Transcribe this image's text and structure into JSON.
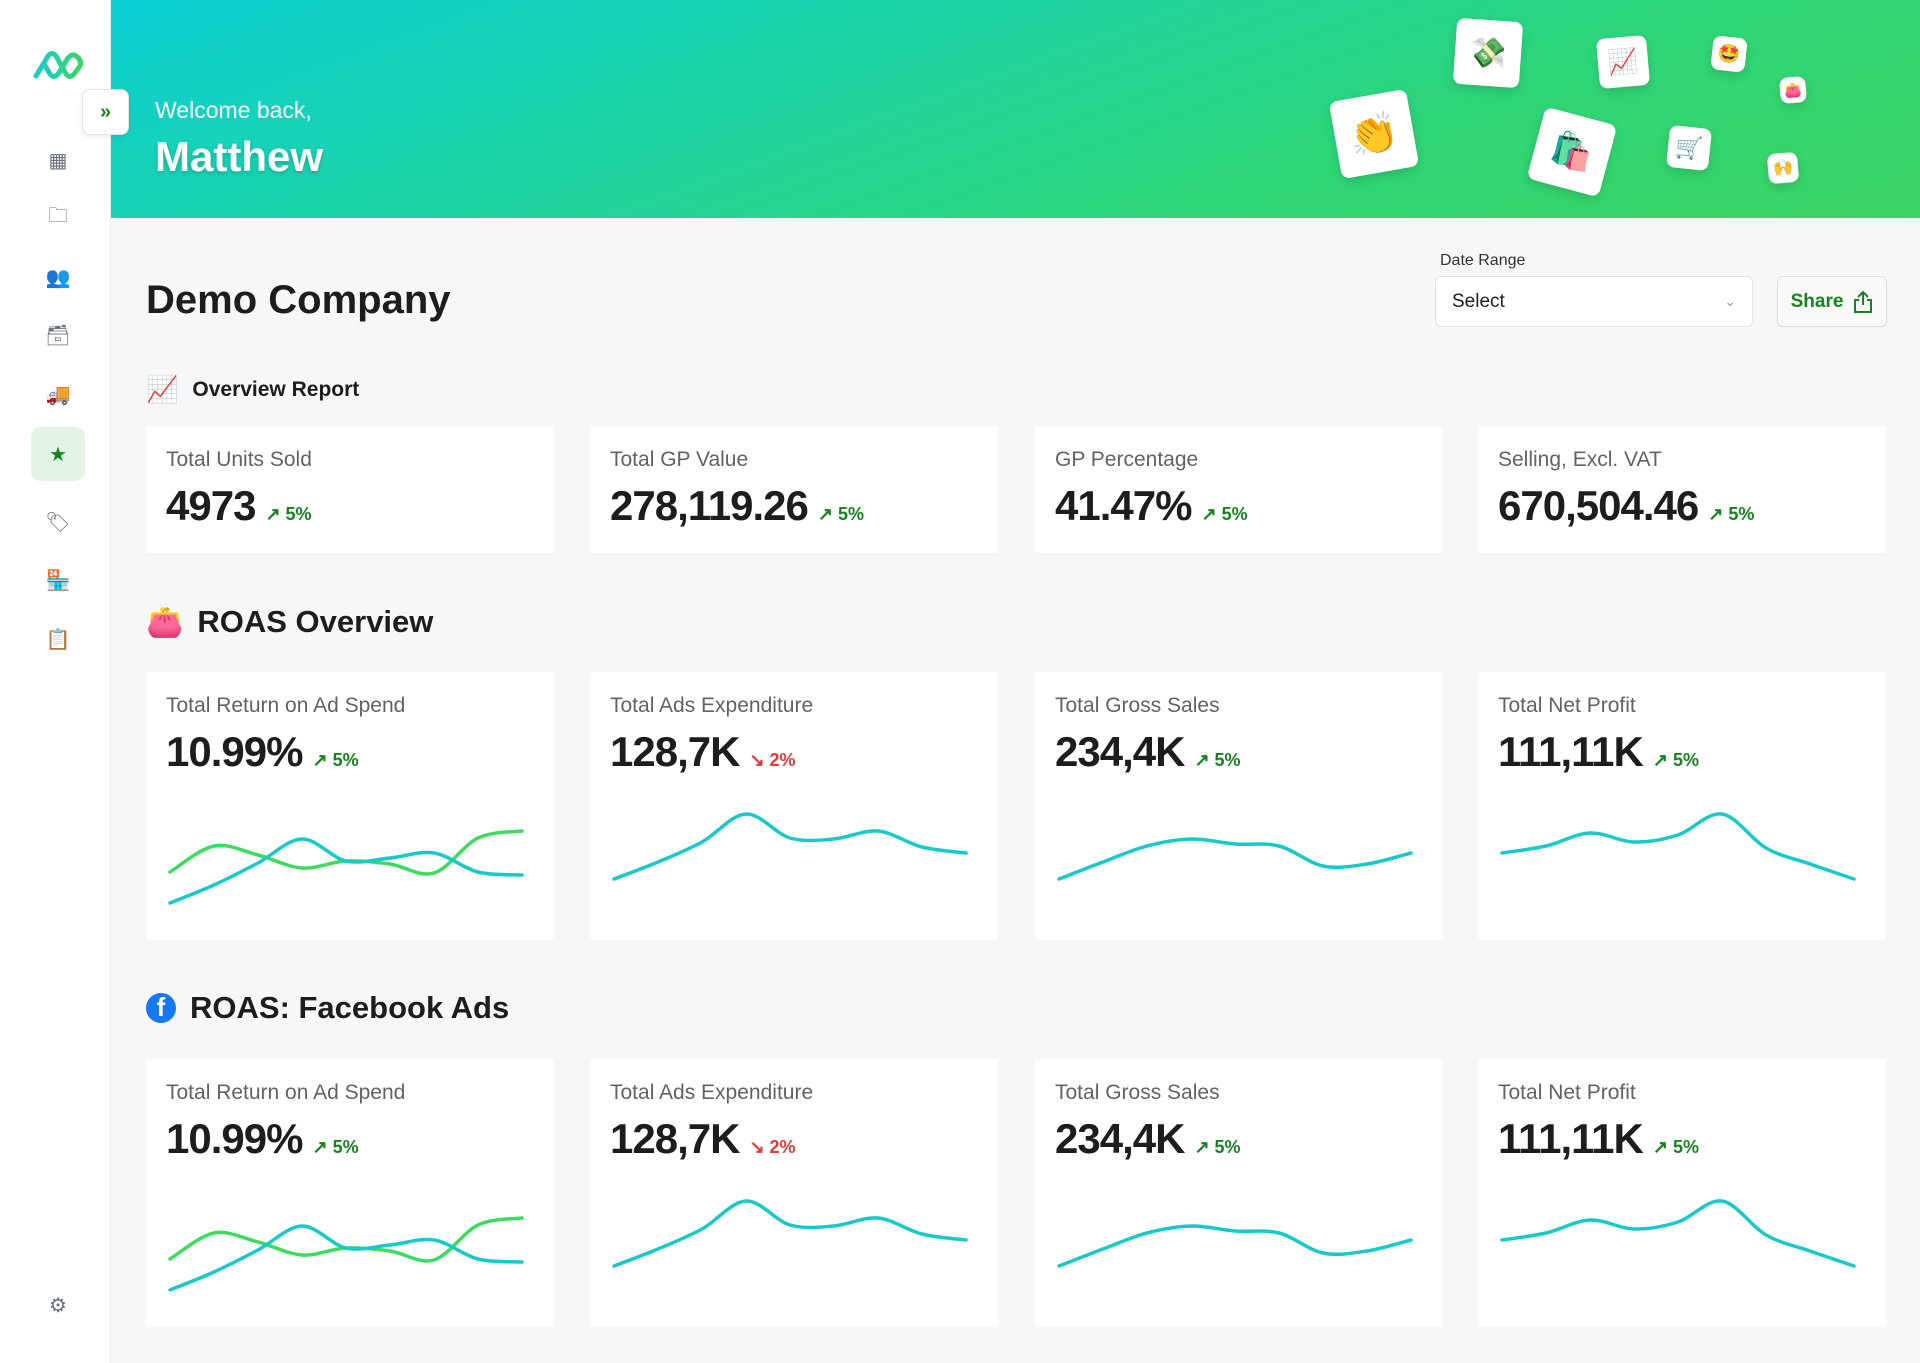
{
  "header": {
    "welcome": "Welcome back,",
    "name": "Matthew",
    "emoji_tiles": [
      "👏",
      "💸",
      "🛍️",
      "📈",
      "🛒",
      "🤩",
      "👛",
      "🙌"
    ]
  },
  "sidebar": {
    "toggle_icon": "»",
    "items": [
      {
        "name": "dashboard-icon",
        "glyph": "▦"
      },
      {
        "name": "folder-icon",
        "glyph": "🗀"
      },
      {
        "name": "users-icon",
        "glyph": "👥"
      },
      {
        "name": "archive-icon",
        "glyph": "🗃"
      },
      {
        "name": "truck-icon",
        "glyph": "🚚"
      },
      {
        "name": "star-icon",
        "glyph": "★",
        "active": true
      },
      {
        "name": "tag-icon",
        "glyph": "🏷"
      },
      {
        "name": "store-icon",
        "glyph": "🏪"
      },
      {
        "name": "clipboard-check-icon",
        "glyph": "📋"
      }
    ],
    "settings": "⚙"
  },
  "page": {
    "title": "Demo Company",
    "date_range_label": "Date Range",
    "date_range_value": "Select",
    "share_label": "Share"
  },
  "colors": {
    "green": "#3ddc5f",
    "teal": "#17c9c9",
    "up": "#17821f",
    "down": "#e53935"
  },
  "sections": [
    {
      "icon": "📈",
      "title": "Overview Report",
      "cards": [
        {
          "label": "Total Units Sold",
          "value": "4973",
          "change": "5%",
          "dir": "up"
        },
        {
          "label": "Total GP Value",
          "value": "278,119.26",
          "change": "5%",
          "dir": "up"
        },
        {
          "label": "GP Percentage",
          "value": "41.47%",
          "change": "5%",
          "dir": "up"
        },
        {
          "label": "Selling, Excl. VAT",
          "value": "670,504.46",
          "change": "5%",
          "dir": "up"
        }
      ]
    },
    {
      "icon": "👛",
      "title": "ROAS Overview",
      "cards": [
        {
          "label": "Total Return on Ad Spend",
          "value": "10.99%",
          "change": "5%",
          "dir": "up",
          "spark": [
            [
              33,
              59,
              50,
              37,
              44,
              41,
              32,
              67,
              74
            ],
            [
              2,
              20,
              42,
              66,
              44,
              47,
              52,
              33,
              30
            ]
          ]
        },
        {
          "label": "Total Ads Expenditure",
          "value": "128,7K",
          "change": "2%",
          "dir": "down",
          "spark": [
            [
              26,
              43,
              63,
              91,
              67,
              66,
              74,
              58,
              52
            ]
          ]
        },
        {
          "label": "Total Gross Sales",
          "value": "234,4K",
          "change": "5%",
          "dir": "up",
          "spark": [
            [
              26,
              43,
              59,
              66,
              61,
              59,
              39,
              41,
              52
            ]
          ]
        },
        {
          "label": "Total Net Profit",
          "value": "111,11K",
          "change": "5%",
          "dir": "up",
          "spark": [
            [
              52,
              59,
              72,
              63,
              70,
              91,
              57,
              41,
              26
            ]
          ]
        }
      ]
    },
    {
      "icon": "f",
      "title": "ROAS: Facebook Ads",
      "cards": [
        {
          "label": "Total Return on Ad Spend",
          "value": "10.99%",
          "change": "5%",
          "dir": "up",
          "spark": [
            [
              33,
              59,
              50,
              37,
              44,
              41,
              32,
              67,
              74
            ],
            [
              2,
              20,
              42,
              66,
              44,
              47,
              52,
              33,
              30
            ]
          ]
        },
        {
          "label": "Total Ads Expenditure",
          "value": "128,7K",
          "change": "2%",
          "dir": "down",
          "spark": [
            [
              26,
              43,
              63,
              91,
              67,
              66,
              74,
              58,
              52
            ]
          ]
        },
        {
          "label": "Total Gross Sales",
          "value": "234,4K",
          "change": "5%",
          "dir": "up",
          "spark": [
            [
              26,
              43,
              59,
              66,
              61,
              59,
              39,
              41,
              52
            ]
          ]
        },
        {
          "label": "Total Net Profit",
          "value": "111,11K",
          "change": "5%",
          "dir": "up",
          "spark": [
            [
              52,
              59,
              72,
              63,
              70,
              91,
              57,
              41,
              26
            ]
          ]
        }
      ]
    }
  ]
}
